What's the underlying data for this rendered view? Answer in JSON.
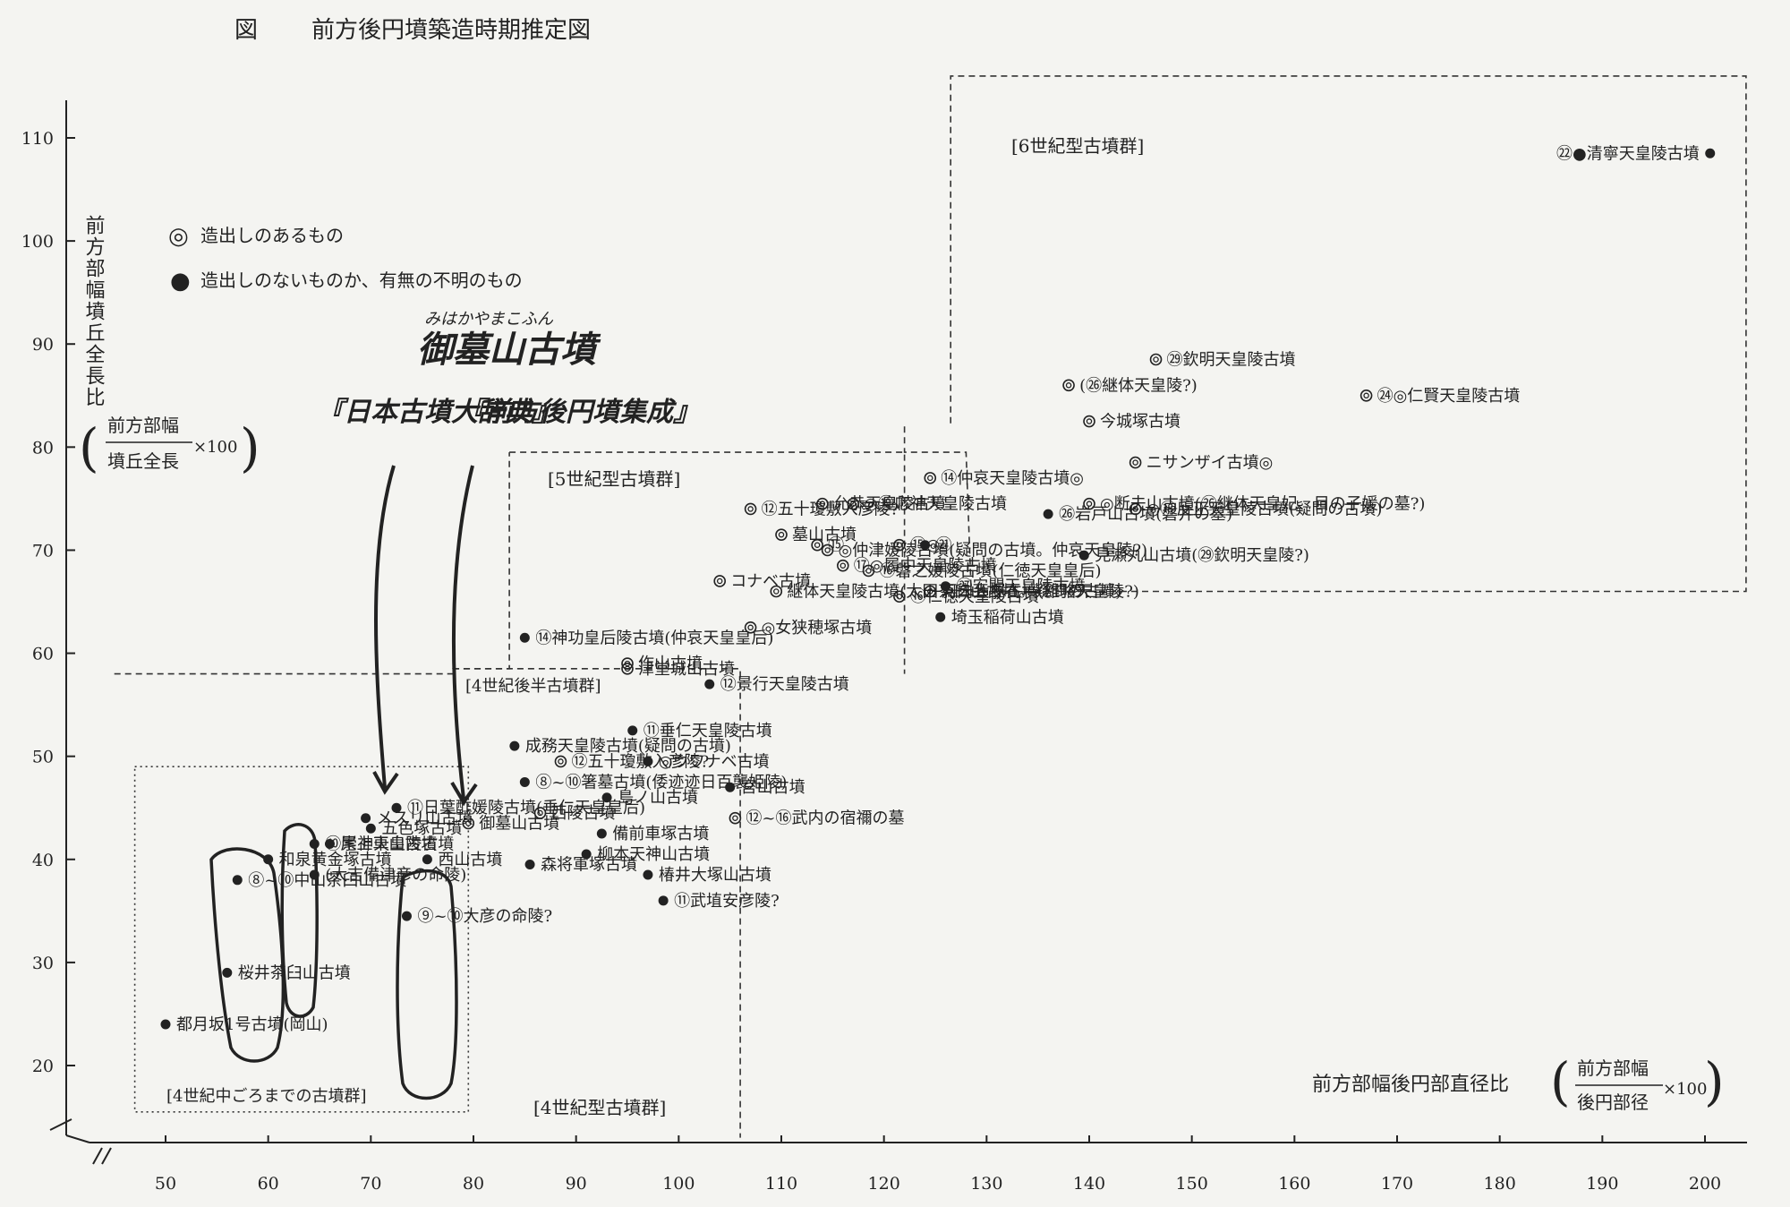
{
  "header": {
    "fig_label": "図",
    "title": "前方後円墳築造時期推定図"
  },
  "legend": {
    "items": [
      {
        "symbol": "◎",
        "label": "造出しのあるもの"
      },
      {
        "symbol": "●",
        "label": "造出しのないものか、有無の不明のもの"
      }
    ]
  },
  "axes": {
    "y_label": "前方部幅墳丘全長比",
    "y_formula": {
      "numerator": "前方部幅",
      "denominator": "墳丘全長",
      "multiplier": "×100"
    },
    "x_label": "前方部幅後円部直径比",
    "x_formula": {
      "numerator": "前方部幅",
      "denominator": "後円部径",
      "multiplier": "×100"
    }
  },
  "groups": [
    {
      "label": "[6世紀型古墳群]"
    },
    {
      "label": "[5世紀型古墳群]"
    },
    {
      "label": "[4世紀後半古墳群]"
    },
    {
      "label": "[4世紀型古墳群]"
    },
    {
      "label": "[4世紀中ごろまでの古墳群]"
    }
  ],
  "annotations": {
    "handwritten_reading": "みはかやまこふん",
    "handwritten_title": "御墓山古墳",
    "handwritten_source_1": "『日本古墳大辞典』",
    "handwritten_source_2": "『前方後円墳集成』"
  },
  "chart_data": {
    "type": "scatter",
    "xlim": [
      45,
      205
    ],
    "ylim": [
      12,
      115
    ],
    "x_ticks": [
      50,
      60,
      70,
      80,
      90,
      100,
      110,
      120,
      130,
      140,
      150,
      160,
      170,
      180,
      190,
      200
    ],
    "y_ticks": [
      20,
      30,
      40,
      50,
      60,
      70,
      80,
      90,
      100,
      110
    ],
    "grid": false,
    "legend_position": "top-left",
    "points": [
      {
        "x": 200.5,
        "y": 108.5,
        "marker": "filled",
        "label": "㉒●清寧天皇陵古墳"
      },
      {
        "x": 167,
        "y": 85,
        "marker": "double",
        "label": "㉔◎仁賢天皇陵古墳"
      },
      {
        "x": 146.5,
        "y": 88.5,
        "marker": "double",
        "label": "㉙欽明天皇陵古墳"
      },
      {
        "x": 144.5,
        "y": 78.5,
        "marker": "double",
        "label": "ニサンザイ古墳◎"
      },
      {
        "x": 144.5,
        "y": 74,
        "marker": "double",
        "label": "◎⑱反正天皇陵古墳(疑問の古墳)"
      },
      {
        "x": 140,
        "y": 74.5,
        "marker": "double",
        "label": "◎断夫山古墳(㉖継体天皇妃、目の子媛の墓?)"
      },
      {
        "x": 140,
        "y": 82.5,
        "marker": "double",
        "label": "今城塚古墳"
      },
      {
        "x": 139.5,
        "y": 69.5,
        "marker": "filled",
        "label": "見瀬丸山古墳(㉙欽明天皇陵?)"
      },
      {
        "x": 136,
        "y": 73.5,
        "marker": "filled",
        "label": "㉖岩戸山古墳(磐井の墓)"
      },
      {
        "x": 138,
        "y": 86,
        "marker": "double",
        "label": "(㉖継体天皇陵?)"
      },
      {
        "x": 126,
        "y": 66.5,
        "marker": "filled",
        "label": "㉗安閑天皇陵古墳"
      },
      {
        "x": 124,
        "y": 70.5,
        "marker": "filled",
        "label": "㉑"
      },
      {
        "x": 125.5,
        "y": 63.5,
        "marker": "filled",
        "label": "埼玉稲荷山古墳"
      },
      {
        "x": 124.5,
        "y": 66,
        "marker": "double",
        "label": "河内大塚古墳(雄略天皇陵?)"
      },
      {
        "x": 124.5,
        "y": 77,
        "marker": "double",
        "label": "⑭仲哀天皇陵古墳◎"
      },
      {
        "x": 121.5,
        "y": 70.5,
        "marker": "double",
        "label": "⑮◎"
      },
      {
        "x": 121.5,
        "y": 65.5,
        "marker": "double",
        "label": "⑯仁徳天皇陵古墳"
      },
      {
        "x": 118.5,
        "y": 68,
        "marker": "double",
        "label": "⑯磐之媛陵古墳(仁徳天皇皇后)"
      },
      {
        "x": 116,
        "y": 68.5,
        "marker": "double",
        "label": "⑰◎履中天皇陵古墳"
      },
      {
        "x": 114.5,
        "y": 70,
        "marker": "double",
        "label": "◎仲津媛陵古墳(疑問の古墳。仲哀天皇陵?)"
      },
      {
        "x": 113.5,
        "y": 70.5,
        "marker": "double",
        "label": "⑮"
      },
      {
        "x": 117,
        "y": 74.5,
        "marker": "double",
        "label": "◎⑲応神天皇陵古墳"
      },
      {
        "x": 114,
        "y": 74.5,
        "marker": "double",
        "label": "允恭天皇陵古墳"
      },
      {
        "x": 110,
        "y": 71.5,
        "marker": "double",
        "label": "墓山古墳"
      },
      {
        "x": 107,
        "y": 74,
        "marker": "double",
        "label": "⑫五十瓊敷入彦陵?"
      },
      {
        "x": 109.5,
        "y": 66,
        "marker": "double",
        "label": "継体天皇陵古墳(太田茶臼山古墳。疑問の古墳)"
      },
      {
        "x": 107,
        "y": 62.5,
        "marker": "double",
        "label": "◎女狭穂塚古墳"
      },
      {
        "x": 104,
        "y": 67,
        "marker": "double",
        "label": "コナベ古墳"
      },
      {
        "x": 103,
        "y": 57,
        "marker": "filled",
        "label": "⑫景行天皇陵古墳"
      },
      {
        "x": 95,
        "y": 58.5,
        "marker": "double",
        "label": "津堂城山古墳"
      },
      {
        "x": 95,
        "y": 59,
        "marker": "double",
        "label": "作山古墳"
      },
      {
        "x": 85,
        "y": 61.5,
        "marker": "filled",
        "label": "⑭神功皇后陵古墳(仲哀天皇皇后)"
      },
      {
        "x": 84,
        "y": 51,
        "marker": "filled",
        "label": "成務天皇陵古墳(疑問の古墳)"
      },
      {
        "x": 95.5,
        "y": 52.5,
        "marker": "filled",
        "label": "⑪垂仁天皇陵古墳"
      },
      {
        "x": 97,
        "y": 49.5,
        "marker": "filled",
        "label": "◎ウワナベ古墳"
      },
      {
        "x": 93,
        "y": 46,
        "marker": "filled",
        "label": "島ノ山古墳"
      },
      {
        "x": 92.5,
        "y": 42.5,
        "marker": "filled",
        "label": "備前車塚古墳"
      },
      {
        "x": 91,
        "y": 40.5,
        "marker": "filled",
        "label": "柳本天神山古墳"
      },
      {
        "x": 97,
        "y": 38.5,
        "marker": "filled",
        "label": "椿井大塚山古墳"
      },
      {
        "x": 98.5,
        "y": 36,
        "marker": "filled",
        "label": "⑪武埴安彦陵?"
      },
      {
        "x": 88.5,
        "y": 49.5,
        "marker": "double",
        "label": "⑫五十瓊敷入彦陵?"
      },
      {
        "x": 85,
        "y": 47.5,
        "marker": "filled",
        "label": "⑧~⑩箸墓古墳(倭迹迹日百襲姫陵)"
      },
      {
        "x": 86.5,
        "y": 44.5,
        "marker": "double",
        "label": "西陵古墳"
      },
      {
        "x": 85.5,
        "y": 39.5,
        "marker": "filled",
        "label": "森将軍塚古墳"
      },
      {
        "x": 105,
        "y": 47,
        "marker": "filled",
        "label": "宮山古墳"
      },
      {
        "x": 105.5,
        "y": 44,
        "marker": "double",
        "label": "⑫~⑯武内の宿禰の墓"
      },
      {
        "x": 79.5,
        "y": 43.5,
        "marker": "double",
        "label": "御墓山古墳"
      },
      {
        "x": 72.5,
        "y": 45,
        "marker": "filled",
        "label": "⑪日葉酢媛陵古墳(垂仁天皇皇后)"
      },
      {
        "x": 75.5,
        "y": 40,
        "marker": "filled",
        "label": "西山古墳"
      },
      {
        "x": 73.5,
        "y": 34.5,
        "marker": "filled",
        "label": "⑨~⑩大彦の命陵?"
      },
      {
        "x": 69.5,
        "y": 44,
        "marker": "filled",
        "label": "メスリ山古墳"
      },
      {
        "x": 70,
        "y": 43,
        "marker": "filled",
        "label": "五色塚古墳"
      },
      {
        "x": 66,
        "y": 41.5,
        "marker": "filled",
        "label": "尾上車山古墳"
      },
      {
        "x": 64.5,
        "y": 41.5,
        "marker": "filled",
        "label": "⑩崇神天皇陵古墳"
      },
      {
        "x": 64.5,
        "y": 38.5,
        "marker": "filled",
        "label": "(大吉備津彦の命陵)"
      },
      {
        "x": 60,
        "y": 40,
        "marker": "filled",
        "label": "和泉黄金塚古墳"
      },
      {
        "x": 57,
        "y": 38,
        "marker": "filled",
        "label": "⑧~⑩中山茶臼山古墳"
      },
      {
        "x": 56,
        "y": 29,
        "marker": "filled",
        "label": "桜井茶臼山古墳"
      },
      {
        "x": 50,
        "y": 24,
        "marker": "filled",
        "label": "都月坂1号古墳(岡山)"
      }
    ],
    "region_lines": [
      {
        "name": "6世紀型境界",
        "points": [
          [
            122,
            82
          ],
          [
            122,
            79.5
          ],
          [
            124,
            79.5
          ],
          [
            126,
            79.5
          ],
          [
            128,
            79.5
          ],
          [
            128.5,
            66
          ],
          [
            204,
            66
          ],
          [
            204,
            116
          ],
          [
            126.5,
            116
          ],
          [
            126.5,
            82
          ]
        ]
      },
      {
        "name": "5世紀型境界",
        "points": [
          [
            83.5,
            79.5
          ],
          [
            122,
            79.5
          ],
          [
            122,
            58
          ]
        ]
      },
      {
        "name": "4世紀後半境界",
        "points": [
          [
            78,
            58.5
          ],
          [
            83.5,
            58.5
          ],
          [
            83.5,
            79.5
          ]
        ]
      },
      {
        "name": "4世紀型境界",
        "points": [
          [
            45,
            58
          ],
          [
            78,
            58
          ],
          [
            78,
            58.5
          ],
          [
            106,
            58.5
          ],
          [
            106,
            13
          ]
        ]
      },
      {
        "name": "4世紀中ごろ境界",
        "points": [
          [
            47,
            49
          ],
          [
            79.5,
            49
          ],
          [
            79.5,
            15.5
          ],
          [
            47,
            15.5
          ],
          [
            47,
            49
          ]
        ]
      }
    ]
  }
}
